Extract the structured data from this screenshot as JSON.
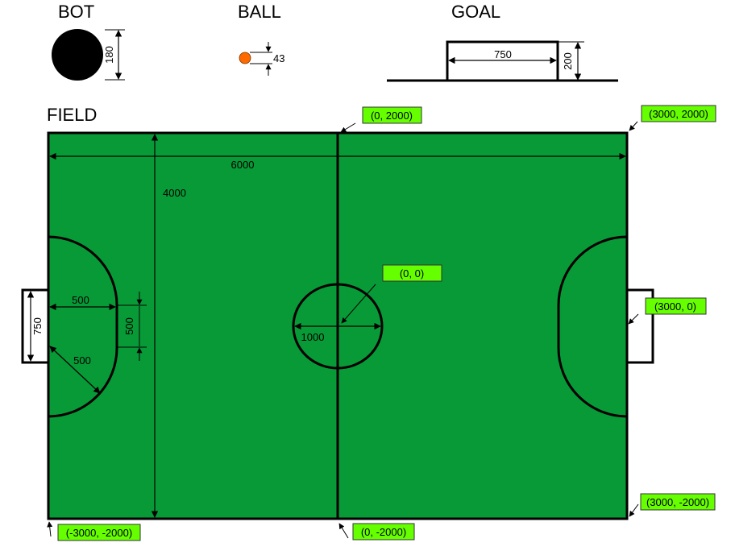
{
  "colors": {
    "field": "#079a37",
    "lines": "#000000",
    "ball": "#ff6a00",
    "bot": "#000000",
    "label_background": "#66ff00"
  },
  "headings": {
    "bot": "BOT",
    "ball": "BALL",
    "goal": "GOAL",
    "field": "FIELD"
  },
  "dimensions": {
    "bot_diameter": "180",
    "ball_diameter": "43",
    "goal_width": "750",
    "goal_depth": "200",
    "field_length": "6000",
    "field_width": "4000",
    "penalty_radius": "500",
    "penalty_depth": "500",
    "penalty_straight": "500",
    "goal_width_field": "750",
    "center_circle_diameter": "1000"
  },
  "coordinates": {
    "top_center": "(0, 2000)",
    "top_right": "(3000, 2000)",
    "center": "(0, 0)",
    "right_goal": "(3000, 0)",
    "bottom_right": "(3000, -2000)",
    "bottom_left": "(-3000, -2000)",
    "bottom_center": "(0, -2000)"
  }
}
